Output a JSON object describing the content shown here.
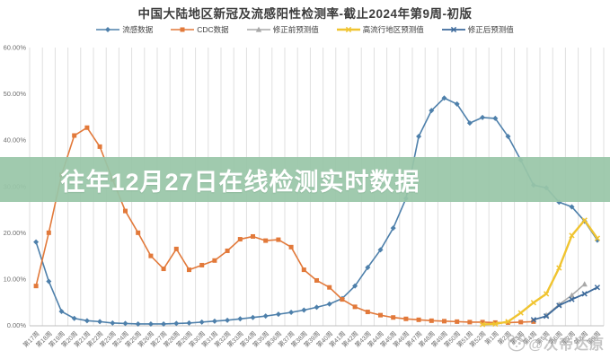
{
  "title": "中国大陆地区新冠及流感阳性检测率-截止2024年第9周-初版",
  "overlay": {
    "text": "往年12月27日在线检测实时数据",
    "bg_color": "#99c6a8"
  },
  "watermark": {
    "icon": "panda-icon",
    "text": "@次帝达原"
  },
  "axis": {
    "y_ticks": [
      "60.00%",
      "50.00%",
      "40.00%",
      "30.00%",
      "20.00%",
      "10.00%",
      "0.00%"
    ],
    "text_color": "#6e6e6e",
    "gridline_color": "#dfdfdf",
    "axisline_color": "#bfbfbf"
  },
  "chart_data": {
    "type": "line",
    "title": "中国大陆地区新冠及流感阳性检测率-截止2024年第9周-初版",
    "xlabel": "",
    "ylabel": "",
    "ylim": [
      0,
      60
    ],
    "grid": "vertical",
    "legend_position": "top",
    "categories": [
      "第17周",
      "第18周",
      "第19周",
      "第20周",
      "第21周",
      "第22周",
      "第23周",
      "第24周",
      "第25周",
      "第26周",
      "第27周",
      "第28周",
      "第29周",
      "第30周",
      "第31周",
      "第32周",
      "第33周",
      "第34周",
      "第35周",
      "第36周",
      "第37周",
      "第38周",
      "第39周",
      "第40周",
      "第41周",
      "第42周",
      "第43周",
      "第44周",
      "第45周",
      "第46周",
      "第47周",
      "第48周",
      "第49周",
      "第50周",
      "第51周",
      "第52周",
      "第1周",
      "第2周",
      "第3周",
      "第4周",
      "第5周",
      "第6周",
      "第7周",
      "第8周",
      "第9周"
    ],
    "series": [
      {
        "id": "flu-data",
        "name": "流感数据",
        "color": "#4e80ab",
        "marker": "diamond",
        "width": 1.6,
        "values": [
          18,
          9.5,
          3,
          1.5,
          1,
          0.8,
          0.5,
          0.4,
          0.3,
          0.3,
          0.3,
          0.4,
          0.5,
          0.7,
          0.9,
          1.1,
          1.4,
          1.7,
          2.0,
          2.4,
          2.8,
          3.3,
          3.9,
          4.6,
          5.8,
          8.5,
          12.5,
          16.3,
          21.0,
          27.4,
          40.8,
          46.4,
          49.1,
          47.8,
          43.7,
          44.9,
          44.7,
          40.8,
          35.7,
          30.3,
          29.7,
          26.6,
          25.6,
          22.5,
          18.4
        ]
      },
      {
        "id": "cdc-data",
        "name": "CDC数据",
        "color": "#e2793a",
        "marker": "square",
        "width": 1.6,
        "values": [
          8.5,
          20,
          32.5,
          41,
          42.7,
          38.6,
          31.5,
          24.7,
          20,
          15,
          12.2,
          16.5,
          12,
          13,
          14,
          16.1,
          18.6,
          19.2,
          18.3,
          18.5,
          16.9,
          12,
          9.7,
          8.2,
          5.6,
          4,
          2.9,
          2.2,
          1.7,
          1.4,
          1.2,
          1.0,
          0.9,
          0.8,
          0.7,
          0.7,
          0.6,
          0.6,
          0.7,
          0.8,
          null,
          null,
          null,
          null,
          null
        ]
      },
      {
        "id": "pre-correction-forecast",
        "name": "修正前预测值",
        "color": "#a8a8a8",
        "marker": "triangle",
        "width": 1.5,
        "values": [
          null,
          null,
          null,
          null,
          null,
          null,
          null,
          null,
          null,
          null,
          null,
          null,
          null,
          null,
          null,
          null,
          null,
          null,
          null,
          null,
          null,
          null,
          null,
          null,
          null,
          null,
          null,
          null,
          null,
          null,
          null,
          null,
          null,
          null,
          null,
          null,
          null,
          null,
          null,
          null,
          2.2,
          4.5,
          6.5,
          8.9,
          null
        ]
      },
      {
        "id": "high-prevalence-forecast",
        "name": "高流行地区预测值",
        "color": "#f0c430",
        "marker": "cross",
        "width": 2.4,
        "values": [
          null,
          null,
          null,
          null,
          null,
          null,
          null,
          null,
          null,
          null,
          null,
          null,
          null,
          null,
          null,
          null,
          null,
          null,
          null,
          null,
          null,
          null,
          null,
          null,
          null,
          null,
          null,
          null,
          null,
          null,
          null,
          null,
          null,
          null,
          null,
          0.2,
          0.3,
          0.8,
          2.7,
          4.9,
          6.8,
          12.4,
          19.4,
          22.7,
          18.8
        ]
      },
      {
        "id": "post-correction-forecast",
        "name": "修正后预测值",
        "color": "#3d6a9b",
        "marker": "cross",
        "width": 1.8,
        "values": [
          null,
          null,
          null,
          null,
          null,
          null,
          null,
          null,
          null,
          null,
          null,
          null,
          null,
          null,
          null,
          null,
          null,
          null,
          null,
          null,
          null,
          null,
          null,
          null,
          null,
          null,
          null,
          null,
          null,
          null,
          null,
          null,
          null,
          null,
          null,
          null,
          null,
          null,
          null,
          1.2,
          2.0,
          4.3,
          5.6,
          6.8,
          8.2
        ]
      }
    ]
  }
}
